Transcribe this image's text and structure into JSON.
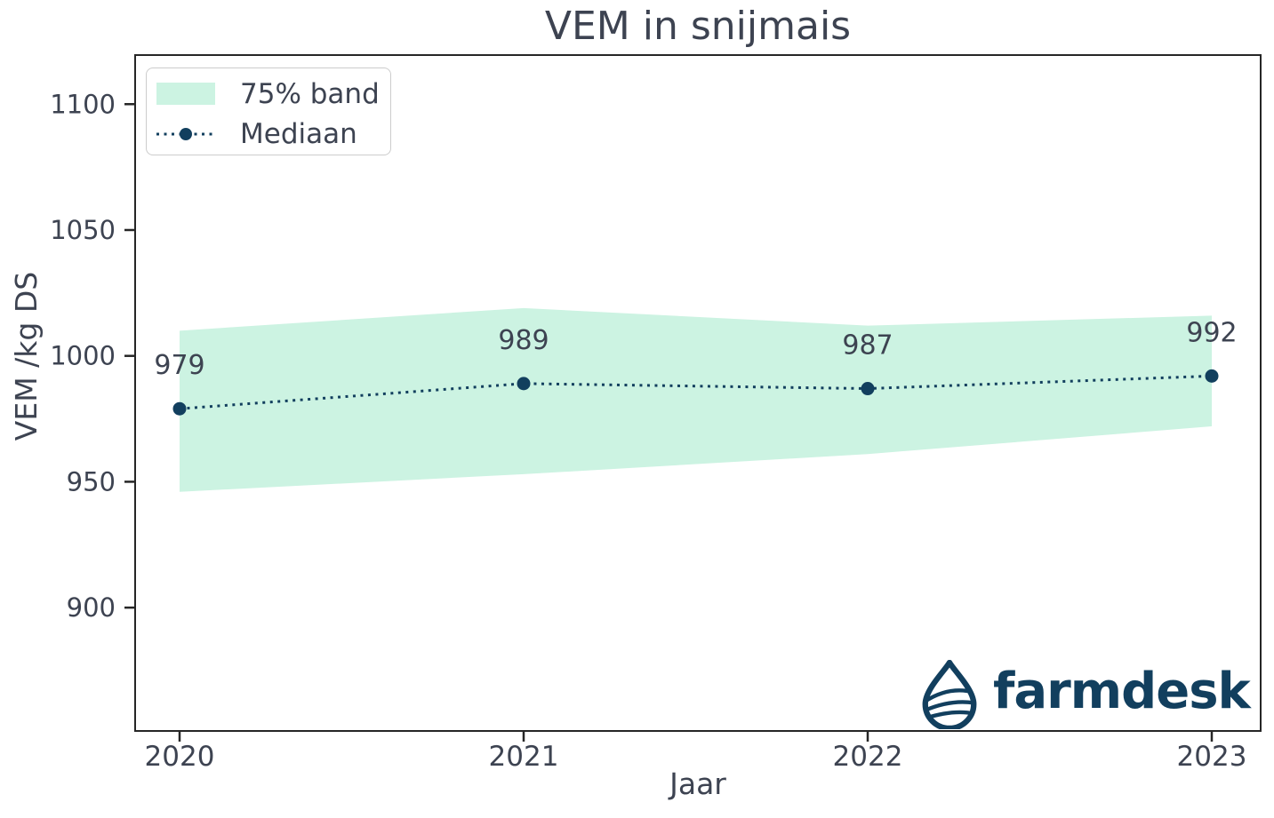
{
  "chart_data": {
    "type": "line",
    "title": "VEM in snijmais",
    "xlabel": "Jaar",
    "ylabel": "VEM /kg DS",
    "x": [
      2020,
      2021,
      2022,
      2023
    ],
    "x_tick_labels": [
      "2020",
      "2021",
      "2022",
      "2023"
    ],
    "y_ticks": [
      900,
      950,
      1000,
      1050,
      1100
    ],
    "ylim": [
      851,
      1119.5
    ],
    "grid": false,
    "legend_position": "upper left",
    "legend": [
      "75% band",
      "Mediaan"
    ],
    "series": [
      {
        "name": "75% band",
        "type": "band",
        "upper": [
          1010,
          1019,
          1012,
          1016
        ],
        "lower": [
          946,
          953,
          961,
          972
        ]
      },
      {
        "name": "Mediaan",
        "type": "dotted-line-with-markers",
        "values": [
          979,
          989,
          987,
          992
        ]
      }
    ],
    "point_labels": [
      "979",
      "989",
      "987",
      "992"
    ]
  },
  "logo": {
    "text": "farmdesk"
  },
  "colors": {
    "band": "#ccf3e2",
    "navy": "#123f5e",
    "text": "#3d4351",
    "spine": "#262626",
    "legend_border": "#cccccc",
    "background": "#ffffff"
  }
}
